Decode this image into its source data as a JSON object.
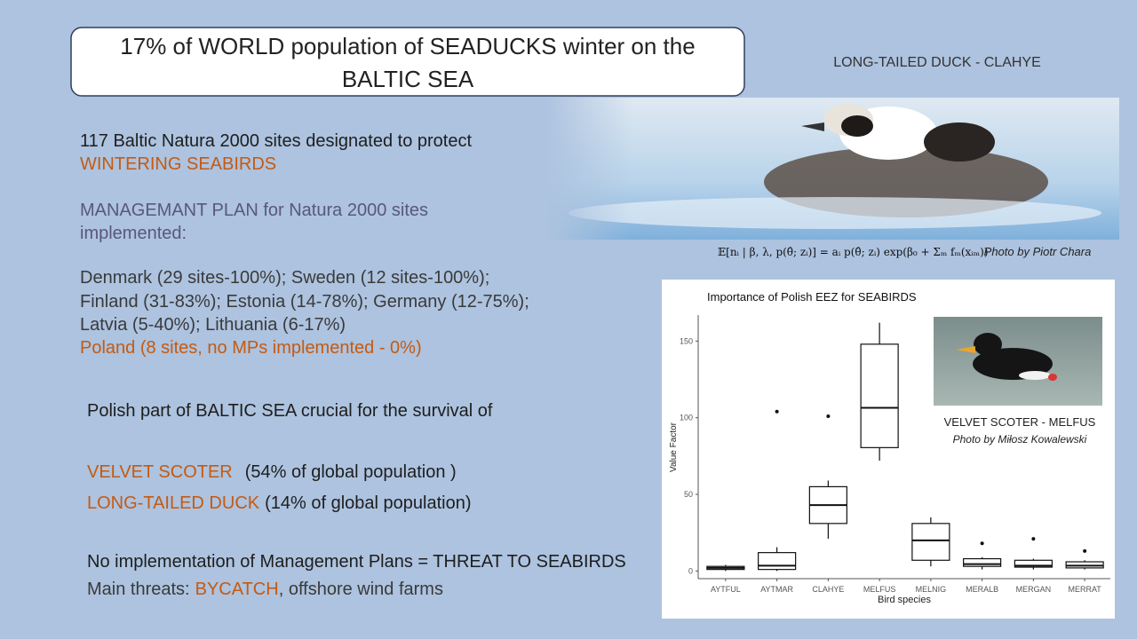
{
  "title": [
    "17% of WORLD population of SEADUCKS winter on the",
    "BALTIC SEA"
  ],
  "top_photo": {
    "caption": "LONG-TAILED DUCK - CLAHYE",
    "formula": "𝔼[nᵢ | β, λ, p(θ̂; zᵢ)] = aᵢ p(θ̂; zᵢ) exp(β₀ + Σₘ fₘ(xᵢₘ))",
    "credit": "Photo by Piotr Chara"
  },
  "text": {
    "sites": [
      "117 Baltic Natura 2000 sites designated to protect",
      "WINTERING SEABIRDS"
    ],
    "plan": [
      "MANAGEMANT PLAN for Natura 2000 sites",
      "implemented:"
    ],
    "countries": [
      "Denmark (29 sites-100%); Sweden (12 sites-100%);",
      "Finland (31-83%); Estonia (14-78%); Germany (12-75%);",
      "Latvia (5-40%); Lithuania (6-17%)"
    ],
    "poland": "Poland (8 sites, no MPs implemented - 0%)",
    "crucial": "Polish part of BALTIC SEA crucial for the survival of",
    "species": [
      {
        "name": "VELVET SCOTER",
        "note": "(54% of global population )"
      },
      {
        "name": "LONG-TAILED DUCK",
        "note": "(14% of global population)"
      }
    ],
    "threat": "No implementation of Management Plans = THREAT TO SEABIRDS",
    "main_threats": [
      "Main threats:",
      "BYCATCH",
      ", offshore wind farms"
    ]
  },
  "chart_data": {
    "type": "box",
    "title": "Importance of Polish EEZ for SEABIRDS",
    "x_label": "Bird species",
    "y_label": "Value Factor",
    "categories": [
      "AYTFUL",
      "AYTMAR",
      "CLAHYE",
      "MELFUS",
      "MELNIG",
      "MERALB",
      "MERGAN",
      "MERRAT"
    ],
    "boxes": [
      {
        "min": 0,
        "q1": 1,
        "median": 2,
        "q3": 3,
        "max": 4,
        "outliers": []
      },
      {
        "min": 0,
        "q1": 1,
        "median": 3.5,
        "q3": 12,
        "max": 15.5,
        "outliers": [
          104
        ]
      },
      {
        "min": 21,
        "q1": 31,
        "median": 43,
        "q3": 55,
        "max": 59,
        "outliers": [
          101
        ]
      },
      {
        "min": 72,
        "q1": 80.5,
        "median": 106.5,
        "q3": 148,
        "max": 162,
        "outliers": []
      },
      {
        "min": 3,
        "q1": 7,
        "median": 20,
        "q3": 31,
        "max": 35,
        "outliers": []
      },
      {
        "min": 1,
        "q1": 3,
        "median": 4.5,
        "q3": 8,
        "max": 9,
        "outliers": [
          18
        ]
      },
      {
        "min": 1,
        "q1": 2.5,
        "median": 3.5,
        "q3": 7,
        "max": 8,
        "outliers": [
          21
        ]
      },
      {
        "min": 1,
        "q1": 2,
        "median": 3.5,
        "q3": 6,
        "max": 7,
        "outliers": [
          13
        ]
      }
    ],
    "ylim": [
      -5,
      167
    ],
    "yticks": [
      0,
      50,
      100,
      150
    ],
    "grid": false,
    "inset": {
      "caption": "VELVET SCOTER - MELFUS",
      "credit": "Photo by Miłosz Kowalewski"
    }
  }
}
